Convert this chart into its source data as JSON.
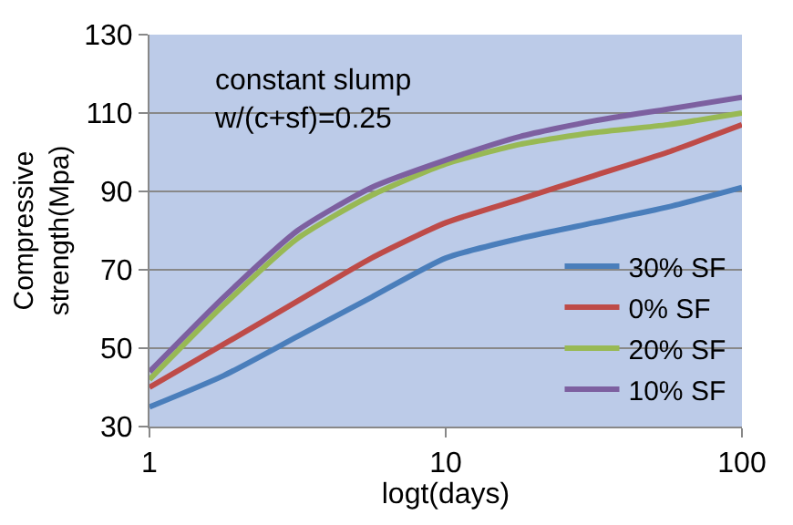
{
  "chart_data": {
    "type": "line",
    "xlabel": "logt(days)",
    "ylabel": "Compressive\nstrength(Mpa)",
    "annotations": [
      "constant slump\nw/(c+sf)=0.25"
    ],
    "x": [
      1,
      1.78,
      3.16,
      5.62,
      10,
      17.8,
      31.6,
      56.2,
      100
    ],
    "series": [
      {
        "name": "30% SF",
        "color": "#4a7ebb",
        "values": [
          35,
          43,
          53,
          63,
          73,
          78,
          82,
          86,
          91
        ]
      },
      {
        "name": "0% SF",
        "color": "#be4b48",
        "values": [
          40,
          51,
          62,
          73,
          82,
          88,
          94,
          100,
          107
        ]
      },
      {
        "name": "20% SF",
        "color": "#98b954",
        "values": [
          42,
          61,
          78,
          89,
          97,
          102,
          105,
          107,
          110
        ]
      },
      {
        "name": "10% SF",
        "color": "#7d60a0",
        "values": [
          44,
          63,
          80,
          91,
          98,
          104,
          108,
          111,
          114
        ]
      }
    ],
    "log": "x",
    "xlim": [
      1,
      100
    ],
    "xticks": [
      1,
      10,
      100
    ],
    "ylim": [
      30,
      130
    ],
    "yticks": [
      30,
      50,
      70,
      90,
      110,
      130
    ],
    "grid": "y",
    "legend": "bottom right",
    "marker": "none",
    "line_style": "solid"
  }
}
